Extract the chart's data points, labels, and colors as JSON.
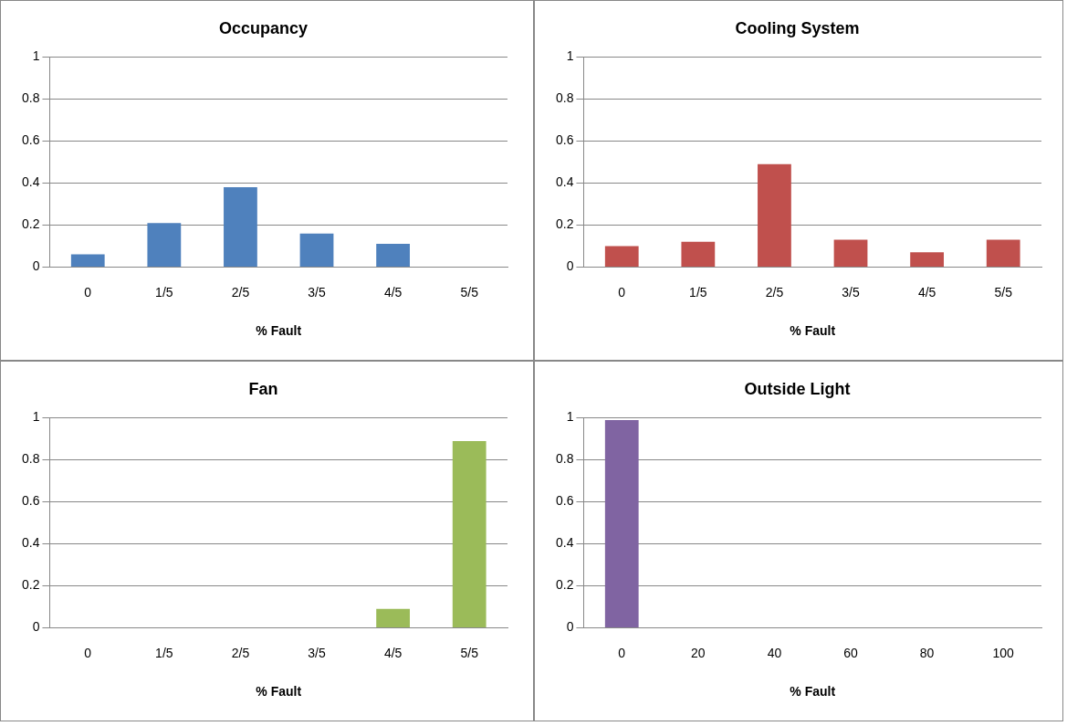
{
  "chart_data": [
    {
      "type": "bar",
      "title": "Occupancy",
      "xlabel": "% Fault",
      "categories": [
        "0",
        "1/5",
        "2/5",
        "3/5",
        "4/5",
        "5/5"
      ],
      "values": [
        0.06,
        0.21,
        0.38,
        0.16,
        0.11,
        0
      ],
      "color": "#4f81bd",
      "ylim": [
        0,
        1
      ],
      "yticks": [
        0,
        0.2,
        0.4,
        0.6,
        0.8,
        1
      ],
      "grid": "y",
      "legend": false
    },
    {
      "type": "bar",
      "title": "Cooling System",
      "xlabel": "% Fault",
      "categories": [
        "0",
        "1/5",
        "2/5",
        "3/5",
        "4/5",
        "5/5"
      ],
      "values": [
        0.1,
        0.12,
        0.49,
        0.13,
        0.07,
        0.13
      ],
      "color": "#c0504d",
      "ylim": [
        0,
        1
      ],
      "yticks": [
        0,
        0.2,
        0.4,
        0.6,
        0.8,
        1
      ],
      "grid": "y",
      "legend": false
    },
    {
      "type": "bar",
      "title": "Fan",
      "xlabel": "% Fault",
      "categories": [
        "0",
        "1/5",
        "2/5",
        "3/5",
        "4/5",
        "5/5"
      ],
      "values": [
        0,
        0,
        0,
        0,
        0.09,
        0.89
      ],
      "color": "#9bbb59",
      "ylim": [
        0,
        1
      ],
      "yticks": [
        0,
        0.2,
        0.4,
        0.6,
        0.8,
        1
      ],
      "grid": "y",
      "legend": false
    },
    {
      "type": "bar",
      "title": "Outside Light",
      "xlabel": "% Fault",
      "categories": [
        "0",
        "20",
        "40",
        "60",
        "80",
        "100"
      ],
      "values": [
        0.99,
        0,
        0,
        0,
        0,
        0
      ],
      "color": "#8064a2",
      "ylim": [
        0,
        1
      ],
      "yticks": [
        0,
        0.2,
        0.4,
        0.6,
        0.8,
        1
      ],
      "grid": "y",
      "legend": false
    }
  ]
}
